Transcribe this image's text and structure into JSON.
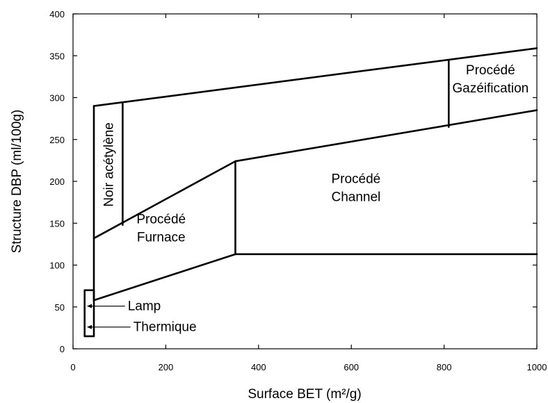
{
  "chart_data": {
    "type": "area",
    "title": "",
    "xlabel": "Surface BET (m²/g)",
    "ylabel": "Structure DBP (ml/100g)",
    "xlim": [
      0,
      1000
    ],
    "ylim": [
      0,
      400
    ],
    "x_ticks": [
      0,
      200,
      400,
      600,
      800,
      1000
    ],
    "y_ticks": [
      0,
      50,
      100,
      150,
      200,
      250,
      300,
      350,
      400
    ],
    "x_tick_labels": [
      "0",
      "200",
      "400",
      "600",
      "800",
      "1000"
    ],
    "y_tick_labels": [
      "0",
      "50",
      "100",
      "150",
      "200",
      "250",
      "300",
      "350",
      "400"
    ],
    "grid": false,
    "boundaries": [
      {
        "name": "upper",
        "x": [
          45,
          1000
        ],
        "y": [
          290,
          359
        ]
      },
      {
        "name": "channel-upper",
        "x": [
          350,
          1000
        ],
        "y": [
          224,
          285
        ]
      },
      {
        "name": "furnace-upper",
        "x": [
          45,
          350
        ],
        "y": [
          132,
          224
        ]
      },
      {
        "name": "furnace-lower",
        "x": [
          45,
          350
        ],
        "y": [
          58,
          113
        ]
      },
      {
        "name": "channel-lower",
        "x": [
          350,
          1000
        ],
        "y": [
          113,
          113
        ]
      },
      {
        "name": "acetylene-divider",
        "x": [
          107,
          107
        ],
        "y": [
          293,
          148
        ]
      },
      {
        "name": "channel-divider",
        "x": [
          350,
          350
        ],
        "y": [
          224,
          113
        ]
      },
      {
        "name": "gasification-divider",
        "x": [
          810,
          810
        ],
        "y": [
          344,
          265
        ]
      },
      {
        "name": "left-edge",
        "x": [
          45,
          45
        ],
        "y": [
          290,
          58
        ]
      }
    ],
    "lamp_thermique_box": {
      "x": [
        25,
        45
      ],
      "y": [
        15,
        70
      ]
    },
    "regions": [
      {
        "label": "Noir acétylène",
        "x": 76,
        "y": 220,
        "rotate": true
      },
      {
        "label_lines": [
          "Procédé",
          "Furnace"
        ],
        "x": 190,
        "y": 140
      },
      {
        "label_lines": [
          "Procédé",
          "Channel"
        ],
        "x": 610,
        "y": 188
      },
      {
        "label_lines": [
          "Procédé",
          "Gazéification"
        ],
        "x": 900,
        "y": 318
      },
      {
        "label": "Lamp",
        "x": 118,
        "y": 51,
        "arrow_to_x": 30
      },
      {
        "label": "Thermique",
        "x": 130,
        "y": 26,
        "arrow_to_x": 30
      }
    ]
  }
}
